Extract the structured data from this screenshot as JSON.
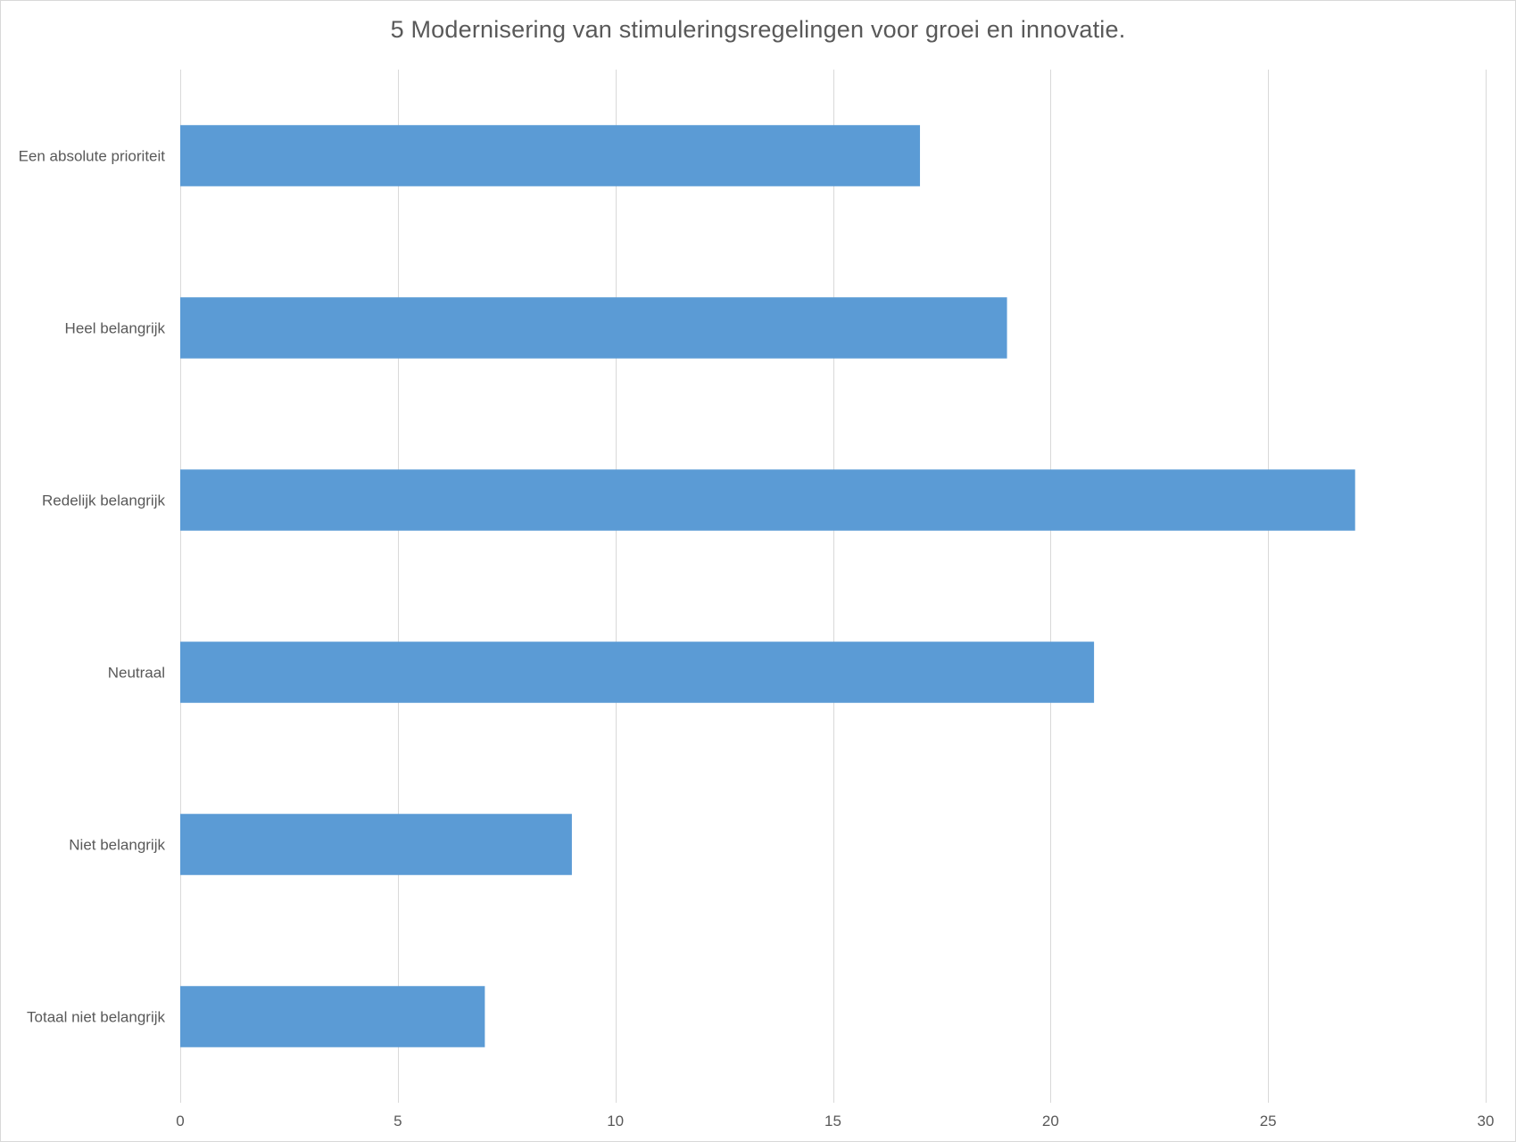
{
  "chart_data": {
    "type": "bar",
    "orientation": "horizontal",
    "title": "5 Modernisering van stimuleringsregelingen voor groei en innovatie.",
    "categories": [
      "Een absolute prioriteit",
      "Heel belangrijk",
      "Redelijk belangrijk",
      "Neutraal",
      "Niet belangrijk",
      "Totaal niet belangrijk"
    ],
    "values": [
      17,
      19,
      27,
      21,
      9,
      7
    ],
    "xlim": [
      0,
      30
    ],
    "xticks": [
      0,
      5,
      10,
      15,
      20,
      25,
      30
    ],
    "grid": "vertical",
    "legend": "none",
    "bar_color": "#5b9bd5",
    "grid_color": "#d9d9d9",
    "text_color": "#595959"
  }
}
